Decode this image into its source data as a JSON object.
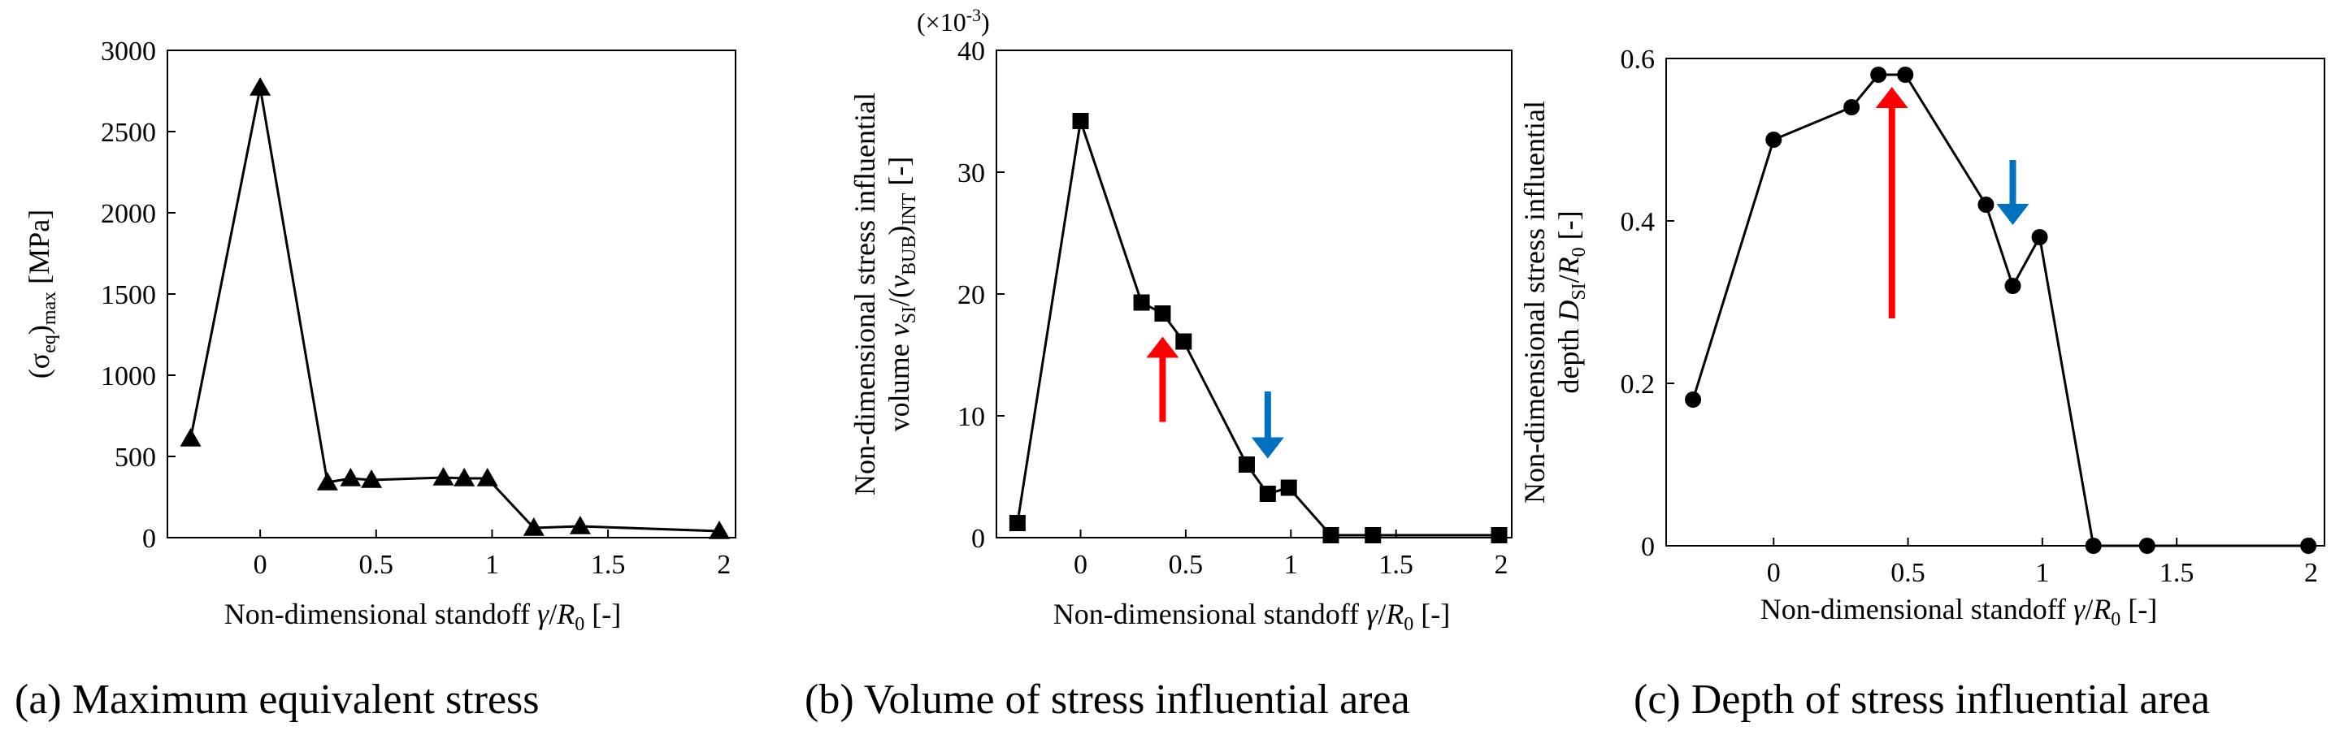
{
  "chart_data": [
    {
      "id": "a",
      "type": "line",
      "marker": "triangle",
      "caption": "(a) Maximum equivalent stress",
      "xlabel": "Non-dimensional standoff",
      "xlabel_tail": "[-]",
      "ylabel_parts": [
        "(σ",
        "eq",
        ")",
        "max",
        " [MPa]"
      ],
      "xlim": [
        -0.4,
        2.05
      ],
      "ylim": [
        0,
        3000
      ],
      "xticks": [
        0,
        0.5,
        1,
        1.5,
        2
      ],
      "xtick_labels": [
        "0",
        "0.5",
        "1",
        "1.5",
        "2"
      ],
      "yticks": [
        0,
        500,
        1000,
        1500,
        2000,
        2500,
        3000
      ],
      "ytick_labels": [
        "0",
        "500",
        "1000",
        "1500",
        "2000",
        "2500",
        "3000"
      ],
      "grid": false,
      "series": [
        {
          "name": "max equivalent stress",
          "x": [
            -0.3,
            0,
            0.29,
            0.39,
            0.48,
            0.79,
            0.88,
            0.98,
            1.18,
            1.38,
            1.98
          ],
          "y": [
            610,
            2770,
            340,
            365,
            355,
            370,
            365,
            365,
            60,
            70,
            40
          ]
        }
      ],
      "arrows": []
    },
    {
      "id": "b",
      "type": "line",
      "marker": "square",
      "caption": "(b) Volume of stress influential area",
      "xlabel": "Non-dimensional standoff",
      "xlabel_tail": "[-]",
      "ylabel_line1": "Non-dimensional stress influential",
      "ylabel_line2_parts": [
        "volume  ",
        "v",
        "SI",
        "/(",
        "v",
        "BUB",
        ")",
        "INT",
        " [-]"
      ],
      "scale_label": "(×10",
      "scale_exp": "-3",
      "scale_close": ")",
      "xlim": [
        -0.4,
        2.05
      ],
      "ylim": [
        0,
        40
      ],
      "xticks": [
        0,
        0.5,
        1,
        1.5,
        2
      ],
      "xtick_labels": [
        "0",
        "0.5",
        "1",
        "1.5",
        "2"
      ],
      "yticks": [
        0,
        10,
        20,
        30,
        40
      ],
      "ytick_labels": [
        "0",
        "10",
        "20",
        "30",
        "40"
      ],
      "grid": false,
      "series": [
        {
          "name": "stress influential volume",
          "x": [
            -0.3,
            0,
            0.29,
            0.39,
            0.49,
            0.79,
            0.89,
            0.99,
            1.19,
            1.39,
            1.99
          ],
          "y": [
            1.2,
            34.2,
            19.3,
            18.4,
            16.1,
            6.0,
            3.6,
            4.1,
            0.2,
            0.2,
            0.2
          ]
        }
      ],
      "arrows": [
        {
          "color": "#ff0000",
          "direction": "up",
          "x": 0.39,
          "y_from": 9.5,
          "y_to": 16.5
        },
        {
          "color": "#0070c0",
          "direction": "down",
          "x": 0.89,
          "y_from": 12,
          "y_to": 6.5
        }
      ]
    },
    {
      "id": "c",
      "type": "line",
      "marker": "circle",
      "caption": "(c) Depth of stress influential area",
      "xlabel": "Non-dimensional standoff",
      "xlabel_tail": "[-]",
      "ylabel_line1": "Non-dimensional stress influential",
      "ylabel_line2_parts": [
        "depth  ",
        "D",
        "SI",
        "/",
        "R",
        "0",
        "  [-]"
      ],
      "xlim": [
        -0.4,
        2.05
      ],
      "ylim": [
        0,
        0.6
      ],
      "xticks": [
        0,
        0.5,
        1,
        1.5,
        2
      ],
      "xtick_labels": [
        "0",
        "0.5",
        "1",
        "1.5",
        "2"
      ],
      "yticks": [
        0,
        0.2,
        0.4,
        0.6
      ],
      "ytick_labels": [
        "0",
        "0.2",
        "0.4",
        "0.6"
      ],
      "grid": false,
      "series": [
        {
          "name": "stress influential depth",
          "x": [
            -0.3,
            0,
            0.29,
            0.39,
            0.49,
            0.79,
            0.89,
            0.99,
            1.19,
            1.39,
            1.99
          ],
          "y": [
            0.18,
            0.5,
            0.54,
            0.58,
            0.58,
            0.42,
            0.32,
            0.38,
            0,
            0,
            0
          ]
        }
      ],
      "arrows": [
        {
          "color": "#ff0000",
          "direction": "up",
          "x": 0.44,
          "y_from": 0.28,
          "y_to": 0.565
        },
        {
          "color": "#0070c0",
          "direction": "down",
          "x": 0.89,
          "y_from": 0.475,
          "y_to": 0.395
        }
      ]
    }
  ]
}
